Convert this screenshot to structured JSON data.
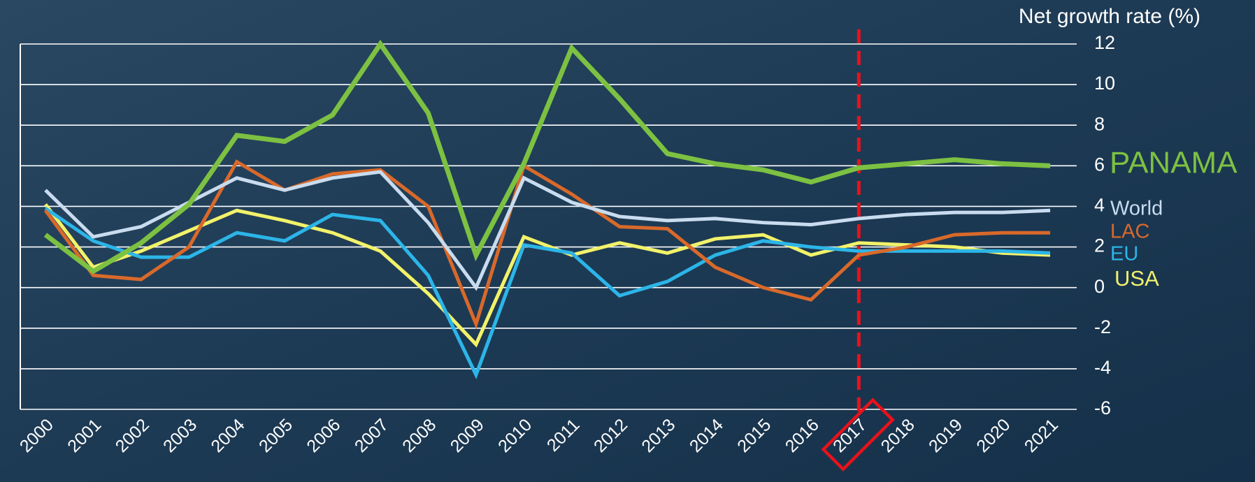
{
  "chart_data": {
    "type": "line",
    "title": "Net growth rate (%)",
    "categories": [
      "2000",
      "2001",
      "2002",
      "2003",
      "2004",
      "2005",
      "2006",
      "2007",
      "2008",
      "2009",
      "2010",
      "2011",
      "2012",
      "2013",
      "2014",
      "2015",
      "2016",
      "2017",
      "2018",
      "2019",
      "2020",
      "2021"
    ],
    "series": [
      {
        "name": "PANAMA",
        "color": "#7dc142",
        "values": [
          2.6,
          0.8,
          2.2,
          4.1,
          7.5,
          7.2,
          8.5,
          12.0,
          8.6,
          1.6,
          6.1,
          11.8,
          9.3,
          6.6,
          6.1,
          5.8,
          5.2,
          5.9,
          6.1,
          6.3,
          6.1,
          6.0
        ]
      },
      {
        "name": "World",
        "color": "#c9dcef",
        "values": [
          4.8,
          2.5,
          3.0,
          4.2,
          5.4,
          4.8,
          5.4,
          5.7,
          3.2,
          0.0,
          5.4,
          4.2,
          3.5,
          3.3,
          3.4,
          3.2,
          3.1,
          3.4,
          3.6,
          3.7,
          3.7,
          3.8
        ]
      },
      {
        "name": "LAC",
        "color": "#d9692a",
        "values": [
          3.8,
          0.6,
          0.4,
          2.0,
          6.2,
          4.8,
          5.6,
          5.8,
          4.0,
          -1.8,
          6.0,
          4.6,
          3.0,
          2.9,
          1.0,
          0.0,
          -0.6,
          1.6,
          2.0,
          2.6,
          2.7,
          2.7
        ]
      },
      {
        "name": "EU",
        "color": "#2cb5e8",
        "values": [
          3.9,
          2.3,
          1.5,
          1.5,
          2.7,
          2.3,
          3.6,
          3.3,
          0.6,
          -4.3,
          2.1,
          1.7,
          -0.4,
          0.3,
          1.6,
          2.3,
          2.0,
          1.8,
          1.8,
          1.8,
          1.8,
          1.7
        ]
      },
      {
        "name": "USA",
        "color": "#f2f26a",
        "values": [
          4.1,
          1.0,
          1.8,
          2.8,
          3.8,
          3.3,
          2.7,
          1.8,
          -0.3,
          -2.8,
          2.5,
          1.6,
          2.2,
          1.7,
          2.4,
          2.6,
          1.6,
          2.2,
          2.1,
          2.0,
          1.7,
          1.6
        ]
      }
    ],
    "ylim": [
      -6,
      12
    ],
    "yticks": [
      -6,
      -4,
      -2,
      0,
      2,
      4,
      6,
      8,
      10,
      12
    ],
    "grid": true
  }
}
